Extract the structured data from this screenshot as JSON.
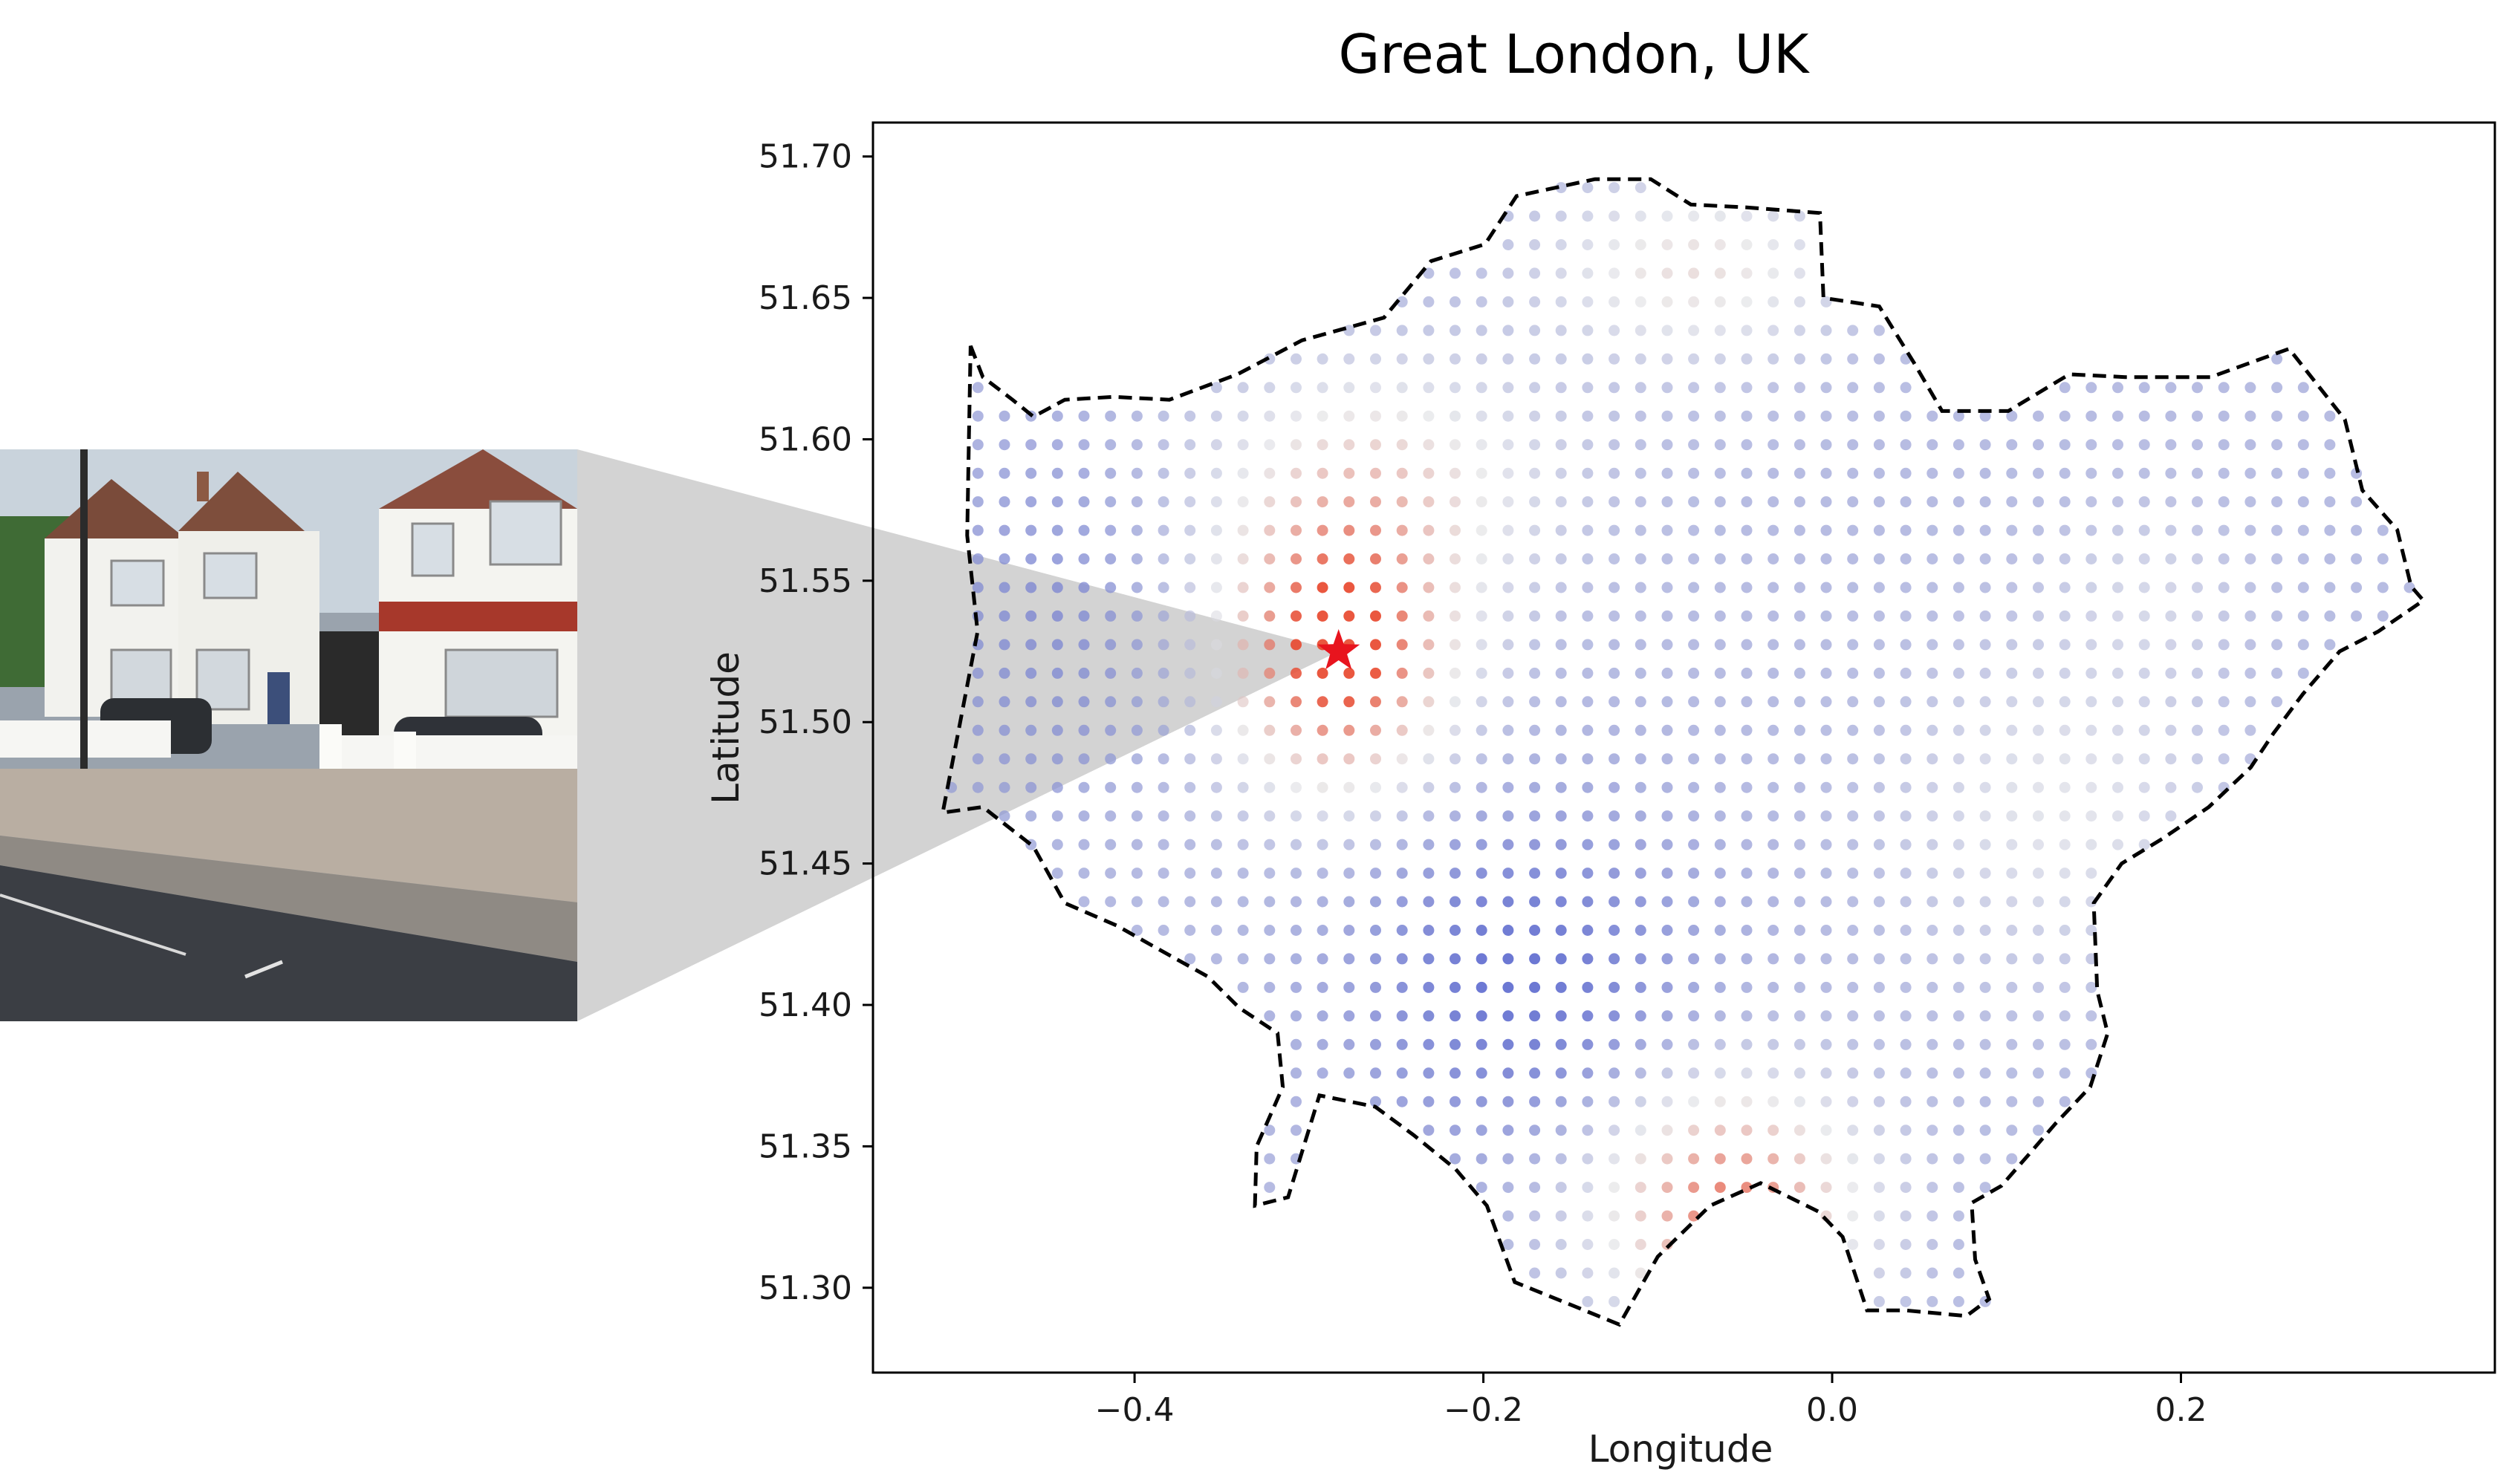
{
  "chart_data": {
    "type": "scatter",
    "title": "Great London, UK",
    "xlabel": "Longitude",
    "ylabel": "Latitude",
    "xlim": [
      -0.55,
      0.38
    ],
    "ylim": [
      51.27,
      51.712
    ],
    "xticks": [
      {
        "value": -0.4,
        "label": "−0.4"
      },
      {
        "value": -0.2,
        "label": "−0.2"
      },
      {
        "value": 0.0,
        "label": "0.0"
      },
      {
        "value": 0.2,
        "label": "0.2"
      }
    ],
    "yticks": [
      {
        "value": 51.3,
        "label": "51.30"
      },
      {
        "value": 51.35,
        "label": "51.35"
      },
      {
        "value": 51.4,
        "label": "51.40"
      },
      {
        "value": 51.45,
        "label": "51.45"
      },
      {
        "value": 51.5,
        "label": "51.50"
      },
      {
        "value": 51.55,
        "label": "51.55"
      },
      {
        "value": 51.6,
        "label": "51.60"
      },
      {
        "value": 51.65,
        "label": "51.65"
      },
      {
        "value": 51.7,
        "label": "51.70"
      }
    ],
    "grid": false,
    "marker": {
      "name": "star",
      "lon": -0.283,
      "lat": 51.525,
      "color": "#e8141e"
    },
    "boundary": {
      "style": "dashed",
      "color": "#000000",
      "points": [
        [
          -0.494,
          51.633
        ],
        [
          -0.487,
          51.622
        ],
        [
          -0.47,
          51.614
        ],
        [
          -0.458,
          51.608
        ],
        [
          -0.44,
          51.614
        ],
        [
          -0.412,
          51.615
        ],
        [
          -0.38,
          51.614
        ],
        [
          -0.341,
          51.623
        ],
        [
          -0.304,
          51.635
        ],
        [
          -0.257,
          51.643
        ],
        [
          -0.23,
          51.663
        ],
        [
          -0.199,
          51.669
        ],
        [
          -0.181,
          51.686
        ],
        [
          -0.136,
          51.692
        ],
        [
          -0.104,
          51.692
        ],
        [
          -0.081,
          51.683
        ],
        [
          -0.049,
          51.682
        ],
        [
          -0.007,
          51.68
        ],
        [
          -0.005,
          51.65
        ],
        [
          0.027,
          51.647
        ],
        [
          0.047,
          51.627
        ],
        [
          0.063,
          51.61
        ],
        [
          0.101,
          51.61
        ],
        [
          0.136,
          51.623
        ],
        [
          0.168,
          51.622
        ],
        [
          0.217,
          51.622
        ],
        [
          0.262,
          51.632
        ],
        [
          0.294,
          51.607
        ],
        [
          0.304,
          51.582
        ],
        [
          0.324,
          51.568
        ],
        [
          0.332,
          51.548
        ],
        [
          0.339,
          51.543
        ],
        [
          0.313,
          51.532
        ],
        [
          0.291,
          51.525
        ],
        [
          0.27,
          51.51
        ],
        [
          0.253,
          51.496
        ],
        [
          0.24,
          51.484
        ],
        [
          0.216,
          51.47
        ],
        [
          0.19,
          51.459
        ],
        [
          0.166,
          51.45
        ],
        [
          0.15,
          51.436
        ],
        [
          0.152,
          51.405
        ],
        [
          0.158,
          51.39
        ],
        [
          0.148,
          51.371
        ],
        [
          0.128,
          51.358
        ],
        [
          0.114,
          51.348
        ],
        [
          0.097,
          51.336
        ],
        [
          0.08,
          51.33
        ],
        [
          0.082,
          51.31
        ],
        [
          0.09,
          51.296
        ],
        [
          0.077,
          51.29
        ],
        [
          0.042,
          51.292
        ],
        [
          0.02,
          51.292
        ],
        [
          0.006,
          51.318
        ],
        [
          -0.008,
          51.327
        ],
        [
          -0.041,
          51.337
        ],
        [
          -0.07,
          51.329
        ],
        [
          -0.1,
          51.311
        ],
        [
          -0.122,
          51.287
        ],
        [
          -0.15,
          51.294
        ],
        [
          -0.182,
          51.302
        ],
        [
          -0.198,
          51.329
        ],
        [
          -0.216,
          51.342
        ],
        [
          -0.24,
          51.354
        ],
        [
          -0.262,
          51.364
        ],
        [
          -0.294,
          51.368
        ],
        [
          -0.312,
          51.332
        ],
        [
          -0.331,
          51.329
        ],
        [
          -0.33,
          51.35
        ],
        [
          -0.315,
          51.371
        ],
        [
          -0.318,
          51.39
        ],
        [
          -0.34,
          51.399
        ],
        [
          -0.358,
          51.41
        ],
        [
          -0.39,
          51.421
        ],
        [
          -0.41,
          51.428
        ],
        [
          -0.44,
          51.436
        ],
        [
          -0.458,
          51.456
        ],
        [
          -0.487,
          51.47
        ],
        [
          -0.51,
          51.468
        ],
        [
          -0.5,
          51.5
        ],
        [
          -0.49,
          51.532
        ],
        [
          -0.496,
          51.566
        ],
        [
          -0.495,
          51.6
        ]
      ]
    },
    "color_scale": {
      "low": "#3c4cc8",
      "mid": "#dcdde0",
      "high": "#e8452a"
    }
  }
}
